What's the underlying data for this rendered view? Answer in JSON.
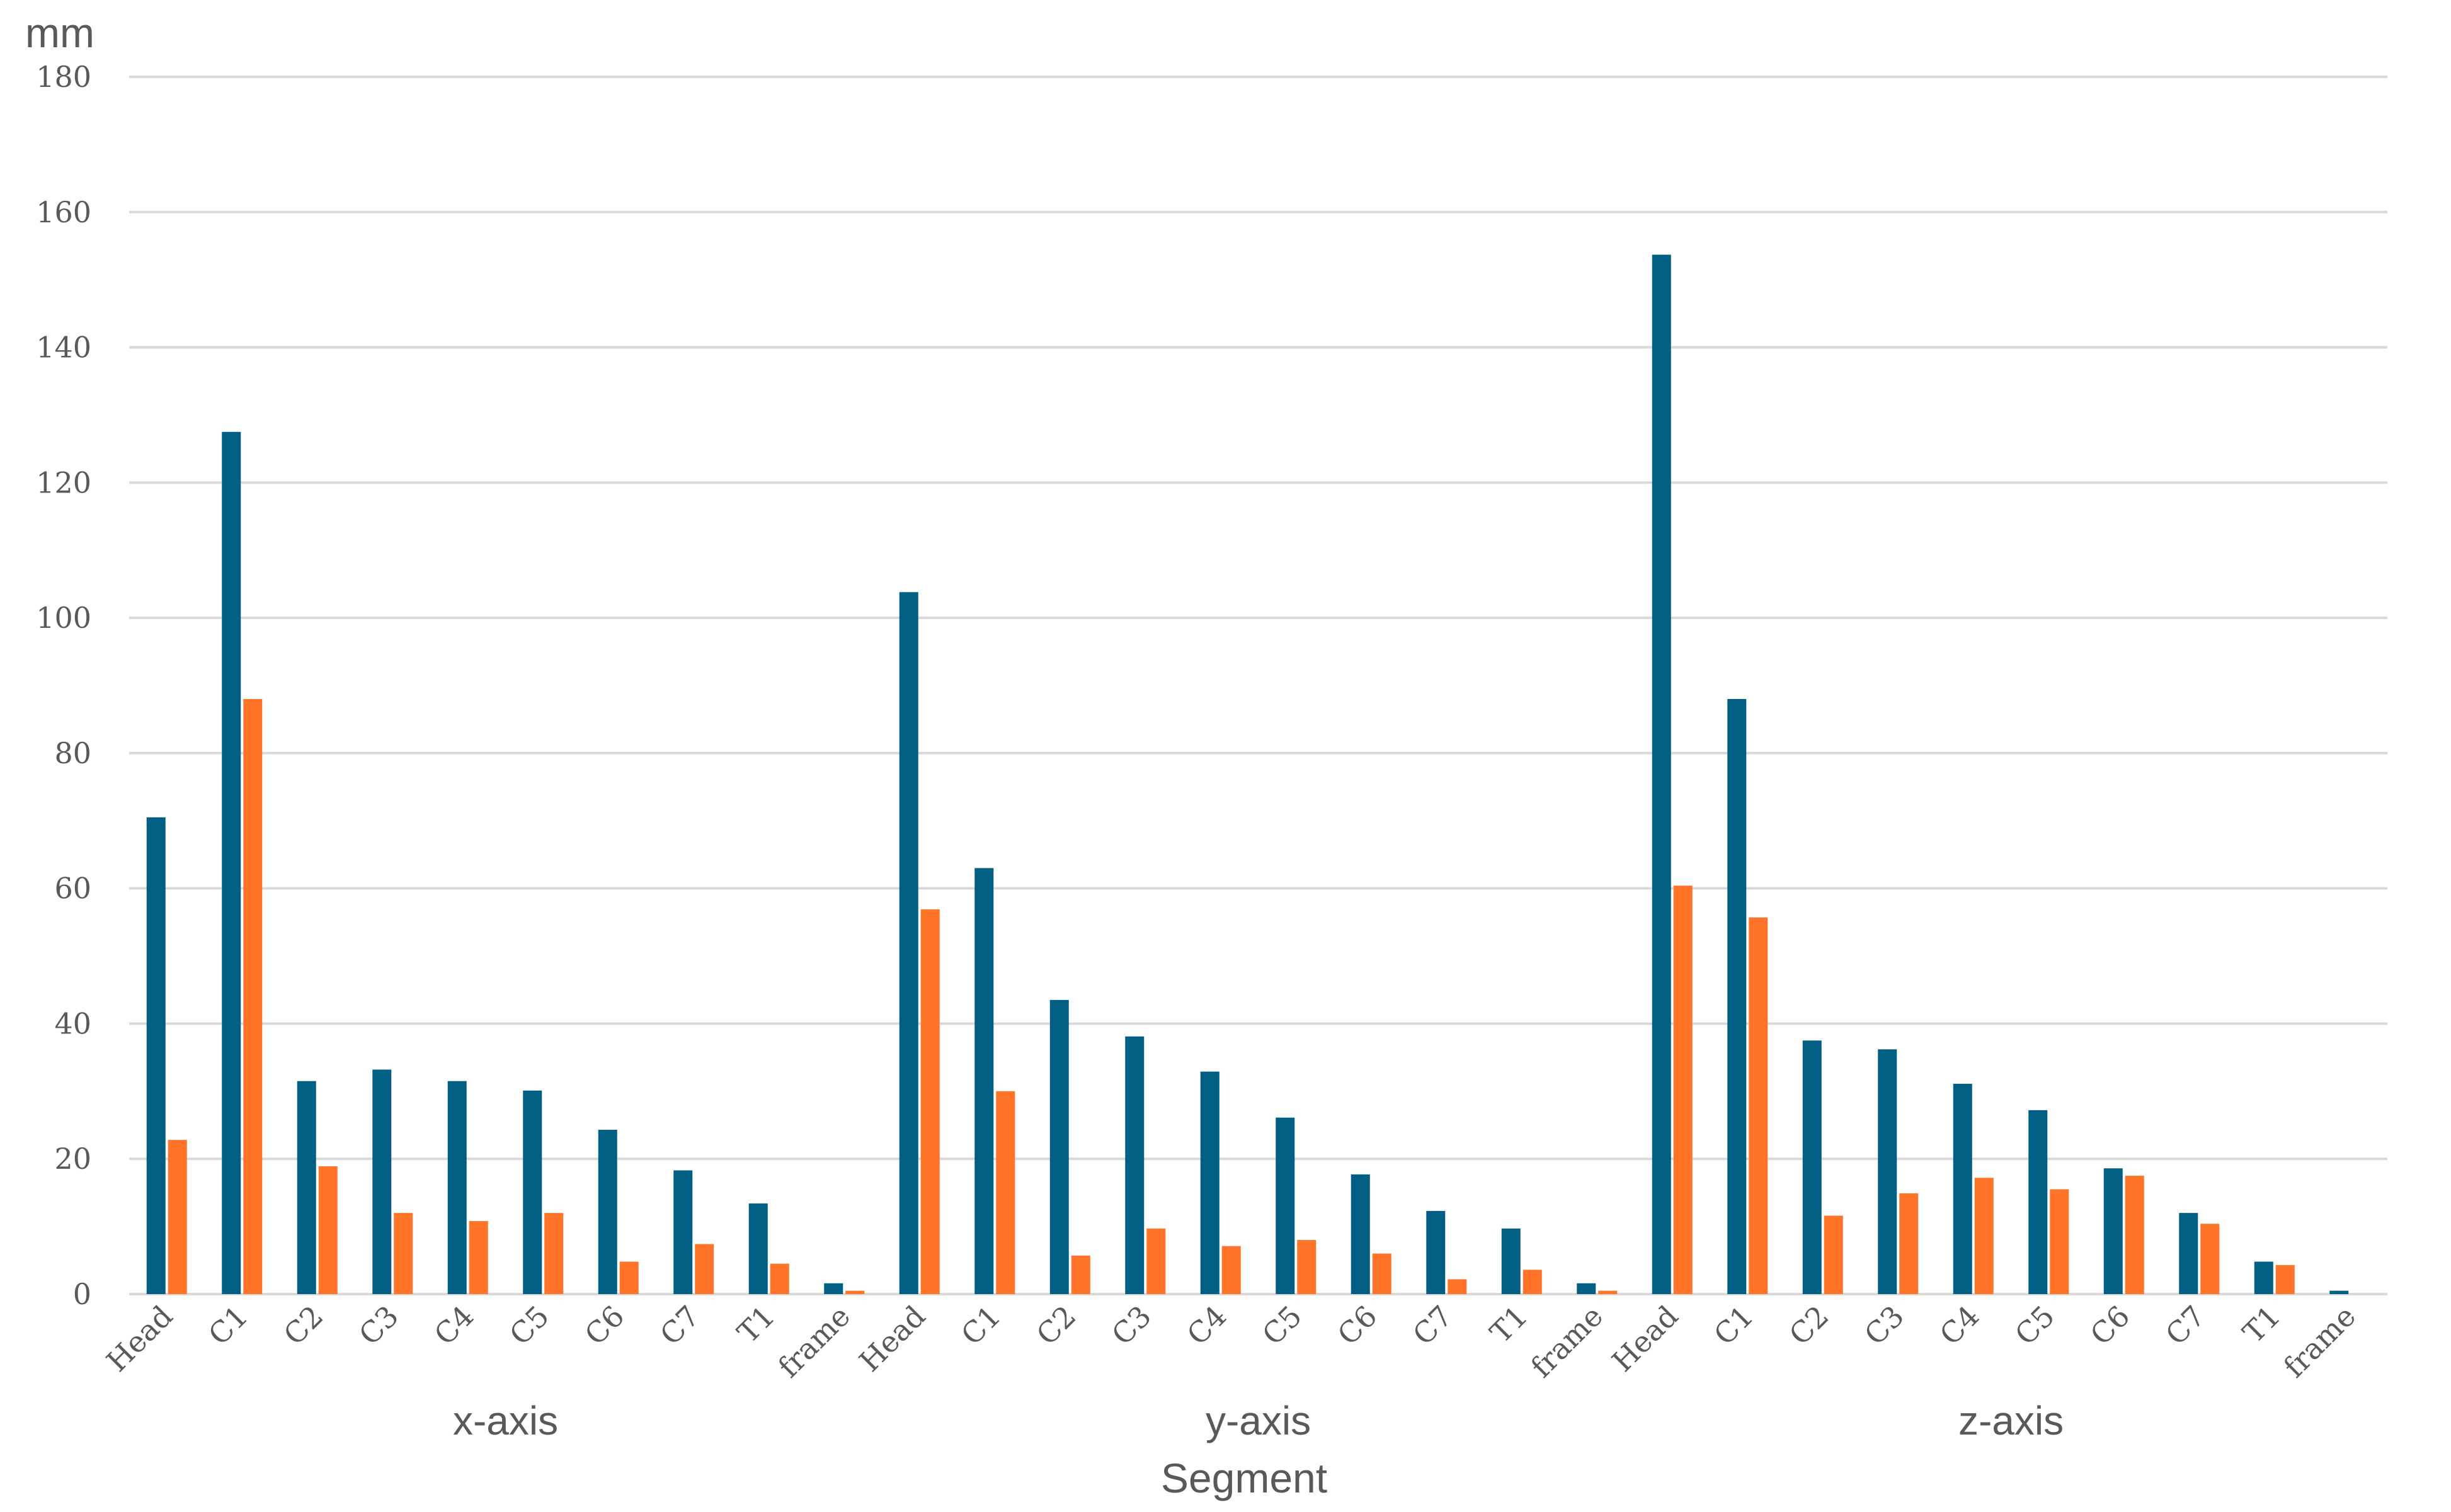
{
  "chart_data": {
    "type": "bar",
    "ylabel": "mm",
    "xlabel": "Segment",
    "ylim": [
      0,
      180
    ],
    "yticks": [
      0,
      20,
      40,
      60,
      80,
      100,
      120,
      140,
      160,
      180
    ],
    "grid": true,
    "groups": [
      "x-axis",
      "y-axis",
      "z-axis"
    ],
    "categories": [
      "Head",
      "C1",
      "C2",
      "C3",
      "C4",
      "C5",
      "C6",
      "C7",
      "T1",
      "frame",
      "Head",
      "C1",
      "C2",
      "C3",
      "C4",
      "C5",
      "C6",
      "C7",
      "T1",
      "frame",
      "Head",
      "C1",
      "C2",
      "C3",
      "C4",
      "C5",
      "C6",
      "C7",
      "T1",
      "frame"
    ],
    "colors": [
      "#005f83",
      "#ff7429"
    ],
    "series": [
      {
        "values": [
          70.5,
          127.5,
          31.5,
          33.2,
          31.5,
          30.1,
          24.3,
          18.3,
          13.4,
          1.6,
          103.8,
          63.0,
          43.5,
          38.1,
          32.9,
          26.1,
          17.7,
          12.3,
          9.7,
          1.6,
          153.7,
          88.0,
          37.5,
          36.2,
          31.1,
          27.2,
          18.6,
          12.0,
          4.8,
          0.5
        ]
      },
      {
        "values": [
          22.8,
          88.0,
          18.9,
          12.0,
          10.8,
          12.0,
          4.8,
          7.4,
          4.5,
          0.5,
          56.9,
          30.0,
          5.7,
          9.7,
          7.1,
          8.0,
          6.0,
          2.2,
          3.6,
          0.5,
          60.4,
          55.7,
          11.6,
          14.9,
          17.2,
          15.5,
          17.5,
          10.4,
          4.3,
          0.0
        ]
      }
    ]
  }
}
